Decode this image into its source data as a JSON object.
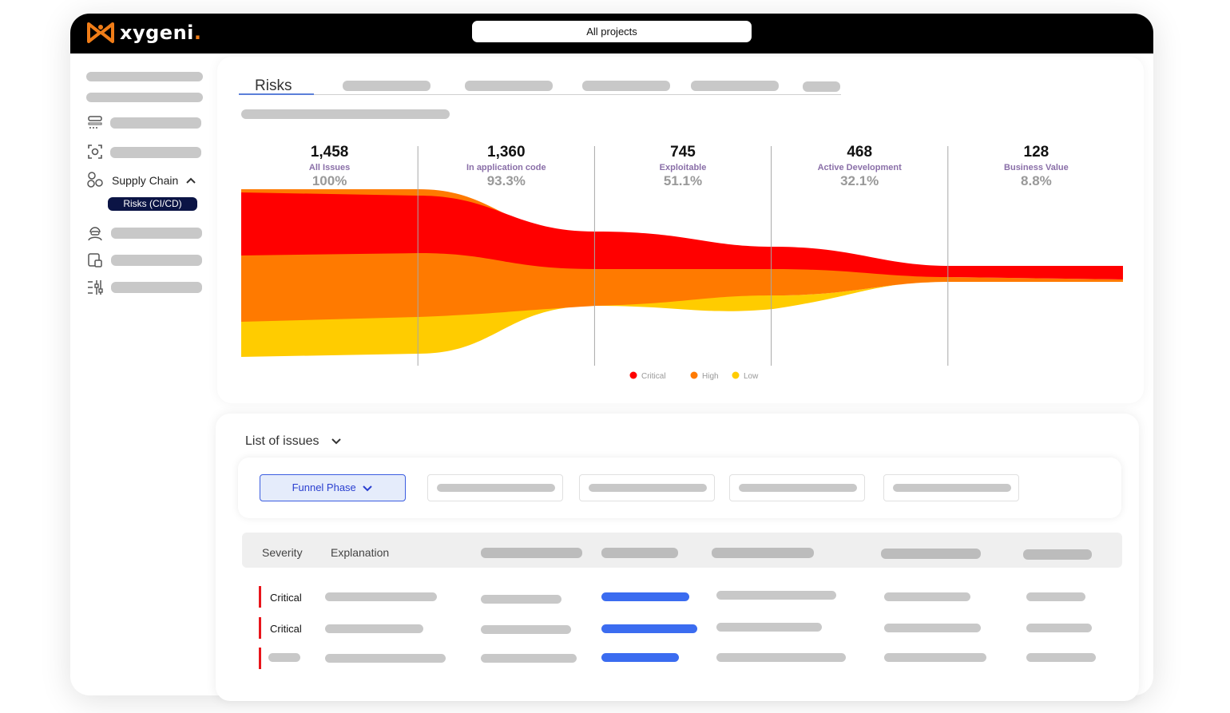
{
  "app": {
    "logo_text": "xygeni",
    "logo_dot": ".",
    "project_select": "All projects",
    "accent": "#f07d18"
  },
  "sidebar": {
    "supply_chain_label": "Supply Chain",
    "active_item": "Risks (CI/CD)",
    "icons": [
      "list-icon",
      "scan-icon",
      "supply-chain-icon",
      "hacker-icon",
      "device-icon",
      "sliders-icon"
    ]
  },
  "tabs": {
    "active": "Risks"
  },
  "chart_data": {
    "type": "area",
    "stages": [
      {
        "count": "1,458",
        "label": "All Issues",
        "percent": "100%"
      },
      {
        "count": "1,360",
        "label": "In application code",
        "percent": "93.3%"
      },
      {
        "count": "745",
        "label": "Exploitable",
        "percent": "51.1%"
      },
      {
        "count": "468",
        "label": "Active Development",
        "percent": "32.1%"
      },
      {
        "count": "128",
        "label": "Business Value",
        "percent": "8.8%"
      }
    ],
    "series": [
      {
        "name": "Critical",
        "color": "#ff0000"
      },
      {
        "name": "High",
        "color": "#ff7a00"
      },
      {
        "name": "Low",
        "color": "#ffcc00"
      }
    ],
    "legend_position": "bottom-center"
  },
  "issues": {
    "title": "List of issues",
    "filter_button": "Funnel Phase",
    "columns": {
      "severity": "Severity",
      "explanation": "Explanation"
    },
    "rows": [
      {
        "severity": "Critical"
      },
      {
        "severity": "Critical"
      }
    ]
  }
}
